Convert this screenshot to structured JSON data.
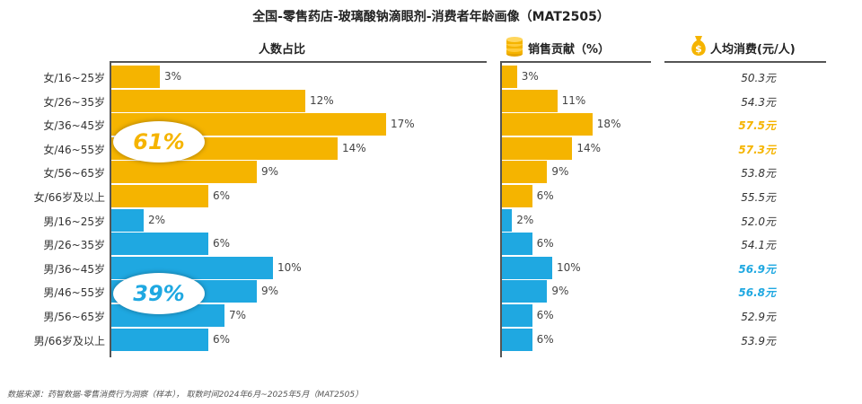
{
  "colors": {
    "female": "#F5B400",
    "male": "#1FA8E1",
    "female_hl": "#F5B400",
    "male_hl": "#1FA8E1"
  },
  "chart_data": {
    "type": "bar",
    "title": "全国-零售药店-玻璃酸钠滴眼剂-消费者年龄画像（MAT2505）",
    "categories": [
      "女/16~25岁",
      "女/26~35岁",
      "女/36~45岁",
      "女/46~55岁",
      "女/56~65岁",
      "女/66岁及以上",
      "男/16~25岁",
      "男/26~35岁",
      "男/36~45岁",
      "男/46~55岁",
      "男/56~65岁",
      "男/66岁及以上"
    ],
    "series": [
      {
        "name": "人数占比",
        "values": [
          3,
          12,
          17,
          14,
          9,
          6,
          2,
          6,
          10,
          9,
          7,
          6
        ],
        "labels": [
          "3%",
          "12%",
          "17%",
          "14%",
          "9%",
          "6%",
          "2%",
          "6%",
          "10%",
          "9%",
          "7%",
          "6%"
        ]
      },
      {
        "name": "销售贡献（%）",
        "values": [
          3,
          11,
          18,
          14,
          9,
          6,
          2,
          6,
          10,
          9,
          6,
          6
        ],
        "labels": [
          "3%",
          "11%",
          "18%",
          "14%",
          "9%",
          "6%",
          "2%",
          "6%",
          "10%",
          "9%",
          "6%",
          "6%"
        ]
      },
      {
        "name": "人均消费(元/人)",
        "values": [
          50.3,
          54.3,
          57.5,
          57.3,
          53.8,
          55.5,
          52.0,
          54.1,
          56.9,
          56.8,
          52.9,
          53.9
        ],
        "labels": [
          "50.3元",
          "54.3元",
          "57.5元",
          "57.3元",
          "53.8元",
          "55.5元",
          "52.0元",
          "54.1元",
          "56.9元",
          "56.8元",
          "52.9元",
          "53.9元"
        ]
      }
    ],
    "highlight_rows": [
      2,
      3,
      8,
      9
    ],
    "group_totals": {
      "female": "61%",
      "male": "39%"
    }
  },
  "headers": {
    "people": "人数占比",
    "sales": "销售贡献（%）",
    "avg": "人均消费(元/人)"
  },
  "footer": "数据来源：药智数据-零售消费行为洞察（样本），  取数时间2024年6月~2025年5月（MAT2505）",
  "icons": {
    "sales": "coin-stack-icon",
    "avg": "money-bag-icon"
  }
}
